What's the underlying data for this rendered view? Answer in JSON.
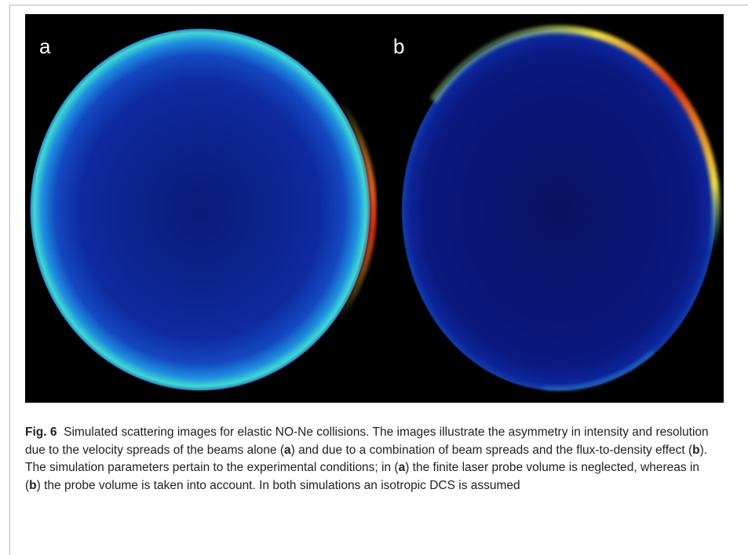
{
  "figure": {
    "panels": [
      {
        "label": "a"
      },
      {
        "label": "b"
      }
    ],
    "caption": {
      "label": "Fig. 6",
      "parts": [
        "Simulated scattering images for elastic NO-Ne collisions. The images illustrate the asymmetry in intensity and resolution due to the velocity spreads of the beams alone (",
        "a",
        ") and due to a combination of beam spreads and the flux-to-density effect (",
        "b",
        "). The simulation parameters pertain to the experimental conditions; in (",
        "a",
        ") the finite laser probe volume is neglected, whereas in (",
        "b",
        ") the probe volume is taken into account. In both simulations an isotropic DCS is assumed"
      ]
    }
  }
}
